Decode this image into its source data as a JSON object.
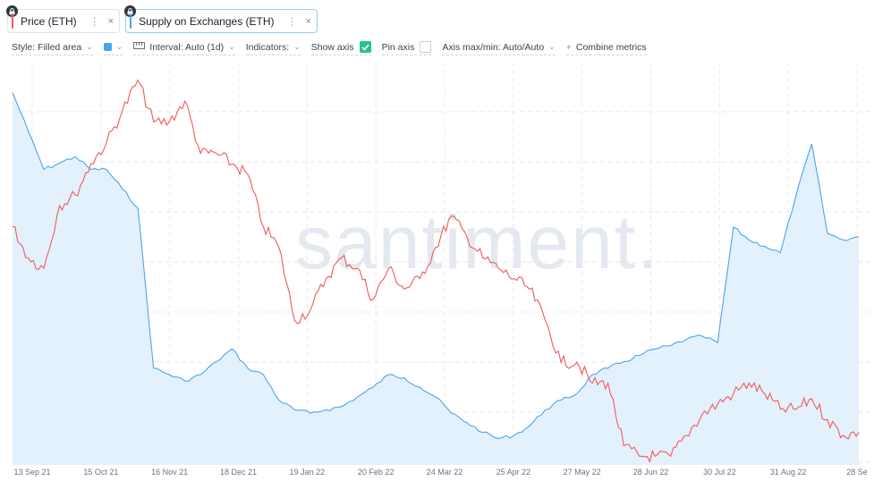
{
  "metrics": [
    {
      "label": "Price (ETH)",
      "color": "#f05b5b",
      "menu_icon": "kebab-icon",
      "close_icon": "close-icon",
      "close": "×",
      "menu": "⋮"
    },
    {
      "label": "Supply on Exchanges (ETH)",
      "color": "#4aa4ef",
      "menu_icon": "kebab-icon",
      "close_icon": "close-icon",
      "close": "×",
      "menu": "⋮",
      "active": true
    }
  ],
  "settings": {
    "style": "Style: Filled area",
    "color_dropdown_icon": "color-swatch-icon",
    "interval": "Interval: Auto (1d)",
    "indicators": "Indicators:",
    "show_axis": "Show axis",
    "show_axis_checked": true,
    "pin_axis": "Pin axis",
    "pin_axis_checked": false,
    "axis_maxmin": "Axis max/min: Auto/Auto",
    "combine": "Combine metrics"
  },
  "watermark": "santiment.",
  "colors": {
    "price": "#f05b5b",
    "supply": "#4aa4ef",
    "supply_fill": "#e3f1fd",
    "grid": "#e6e9ee"
  },
  "chart_data": {
    "type": "line",
    "x_tick_labels": [
      "13 Sep 21",
      "15 Oct 21",
      "16 Nov 21",
      "18 Dec 21",
      "19 Jan 22",
      "20 Feb 22",
      "24 Mar 22",
      "25 Apr 22",
      "27 May 22",
      "28 Jun 22",
      "30 Jul 22",
      "31 Aug 22",
      "28 Se"
    ],
    "grid": true,
    "series": [
      {
        "name": "Price (ETH)",
        "style": "line",
        "x": [
          "2021-09-13",
          "2021-09-20",
          "2021-09-27",
          "2021-10-04",
          "2021-10-11",
          "2021-10-18",
          "2021-10-25",
          "2021-11-01",
          "2021-11-08",
          "2021-11-15",
          "2021-11-22",
          "2021-11-29",
          "2021-12-06",
          "2021-12-13",
          "2021-12-20",
          "2021-12-27",
          "2022-01-03",
          "2022-01-10",
          "2022-01-17",
          "2022-01-24",
          "2022-01-31",
          "2022-02-07",
          "2022-02-14",
          "2022-02-21",
          "2022-02-28",
          "2022-03-07",
          "2022-03-14",
          "2022-03-21",
          "2022-03-28",
          "2022-04-04",
          "2022-04-11",
          "2022-04-18",
          "2022-04-25",
          "2022-05-02",
          "2022-05-09",
          "2022-05-16",
          "2022-05-23",
          "2022-05-30",
          "2022-06-06",
          "2022-06-13",
          "2022-06-20",
          "2022-06-27",
          "2022-07-04",
          "2022-07-11",
          "2022-07-18",
          "2022-07-25",
          "2022-08-01",
          "2022-08-08",
          "2022-08-15",
          "2022-08-22",
          "2022-08-29",
          "2022-09-05",
          "2022-09-12",
          "2022-09-19",
          "2022-09-26"
        ],
        "y": [
          3300,
          3000,
          2900,
          3500,
          3600,
          3900,
          4100,
          4400,
          4700,
          4300,
          4300,
          4500,
          4000,
          4000,
          3900,
          3800,
          3300,
          3100,
          2400,
          2500,
          2800,
          3000,
          2900,
          2600,
          2900,
          2700,
          2800,
          3100,
          3400,
          3200,
          3000,
          2900,
          2800,
          2700,
          2400,
          2000,
          2000,
          1800,
          1800,
          1200,
          1100,
          1100,
          1100,
          1300,
          1500,
          1600,
          1700,
          1800,
          1700,
          1550,
          1550,
          1650,
          1450,
          1300,
          1330
        ]
      },
      {
        "name": "Supply on Exchanges (ETH)",
        "style": "filled area",
        "x": [
          "2021-09-13",
          "2021-09-20",
          "2021-09-27",
          "2021-10-04",
          "2021-10-11",
          "2021-10-18",
          "2021-10-25",
          "2021-11-01",
          "2021-11-08",
          "2021-11-15",
          "2021-11-22",
          "2021-11-29",
          "2021-12-06",
          "2021-12-13",
          "2021-12-20",
          "2021-12-27",
          "2022-01-03",
          "2022-01-10",
          "2022-01-17",
          "2022-01-24",
          "2022-01-31",
          "2022-02-07",
          "2022-02-14",
          "2022-02-21",
          "2022-02-28",
          "2022-03-07",
          "2022-03-14",
          "2022-03-21",
          "2022-03-28",
          "2022-04-04",
          "2022-04-11",
          "2022-04-18",
          "2022-04-25",
          "2022-05-02",
          "2022-05-09",
          "2022-05-16",
          "2022-05-23",
          "2022-05-30",
          "2022-06-06",
          "2022-06-13",
          "2022-06-20",
          "2022-06-27",
          "2022-07-04",
          "2022-07-11",
          "2022-07-18",
          "2022-07-25",
          "2022-08-01",
          "2022-08-08",
          "2022-08-15",
          "2022-08-22",
          "2022-08-29",
          "2022-09-05",
          "2022-09-12",
          "2022-09-19",
          "2022-09-26"
        ],
        "y": [
          21000000,
          20400000,
          19800000,
          19900000,
          20000000,
          19800000,
          19800000,
          19500000,
          19200000,
          16700000,
          16600000,
          16500000,
          16600000,
          16800000,
          17000000,
          16700000,
          16600000,
          16200000,
          16050000,
          16000000,
          16050000,
          16100000,
          16250000,
          16400000,
          16600000,
          16550000,
          16400000,
          16250000,
          16000000,
          15850000,
          15700000,
          15600000,
          15650000,
          15800000,
          16050000,
          16200000,
          16300000,
          16600000,
          16700000,
          16800000,
          16900000,
          17000000,
          17050000,
          17150000,
          17200000,
          17100000,
          18900000,
          18700000,
          18600000,
          18500000,
          19400000,
          20200000,
          18800000,
          18700000,
          18750000
        ]
      }
    ]
  }
}
